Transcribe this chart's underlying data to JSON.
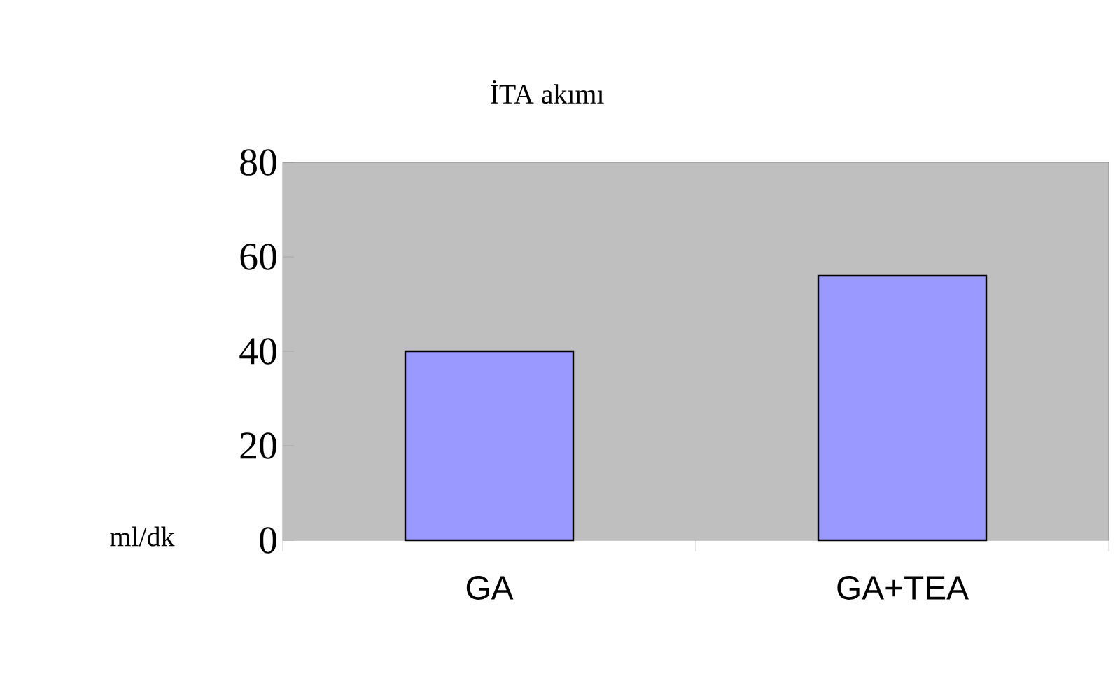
{
  "chart_data": {
    "type": "bar",
    "title": "İTA akımı",
    "ylabel": "ml/dk",
    "categories": [
      "GA",
      "GA+TEA"
    ],
    "values": [
      40,
      56
    ],
    "color": "#9999ff",
    "ylim": [
      0,
      80
    ],
    "yticks": [
      0,
      20,
      40,
      60,
      80
    ],
    "grid": false
  }
}
